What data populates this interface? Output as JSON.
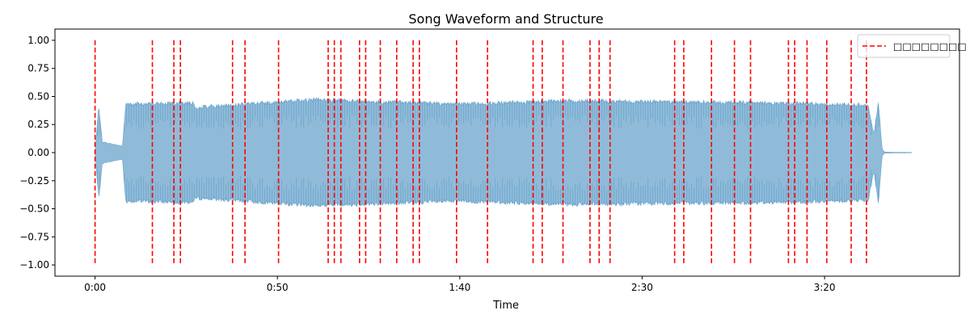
{
  "chart_data": {
    "type": "line",
    "title": "Song Waveform and Structure",
    "xlabel": "Time",
    "ylabel": "",
    "xlim": [
      -11,
      237
    ],
    "ylim": [
      -1.1,
      1.1
    ],
    "x_ticks": [
      {
        "value": 0,
        "label": "0:00"
      },
      {
        "value": 50,
        "label": "0:50"
      },
      {
        "value": 100,
        "label": "1:40"
      },
      {
        "value": 150,
        "label": "2:30"
      },
      {
        "value": 200,
        "label": "3:20"
      }
    ],
    "y_ticks": [
      1.0,
      0.75,
      0.5,
      0.25,
      0.0,
      -0.25,
      -0.5,
      -0.75,
      -1.0
    ],
    "y_tick_labels": [
      "1.00",
      "0.75",
      "0.50",
      "0.25",
      "0.00",
      "−0.25",
      "−0.50",
      "−0.75",
      "−1.00"
    ],
    "legend": {
      "entries": [
        "□□□□□□□□"
      ],
      "position": "upper right"
    },
    "waveform": {
      "color": "#1f77b4",
      "opacity": 0.5,
      "duration": 224,
      "envelope": [
        {
          "t": 0.0,
          "a": 0.02
        },
        {
          "t": 1.0,
          "a": 0.43
        },
        {
          "t": 2.0,
          "a": 0.1
        },
        {
          "t": 7.5,
          "a": 0.06
        },
        {
          "t": 8.4,
          "a": 0.45
        },
        {
          "t": 27.0,
          "a": 0.46
        },
        {
          "t": 27.5,
          "a": 0.42
        },
        {
          "t": 60.0,
          "a": 0.49
        },
        {
          "t": 100.0,
          "a": 0.45
        },
        {
          "t": 130.0,
          "a": 0.48
        },
        {
          "t": 190.0,
          "a": 0.46
        },
        {
          "t": 212.0,
          "a": 0.44
        },
        {
          "t": 213.5,
          "a": 0.17
        },
        {
          "t": 214.8,
          "a": 0.47
        },
        {
          "t": 215.8,
          "a": 0.03
        },
        {
          "t": 216.5,
          "a": 0.005
        },
        {
          "t": 224.0,
          "a": 0.002
        }
      ]
    },
    "segment_boundaries": {
      "label": "□□□□□□□□",
      "color": "#ff0000",
      "style": "dashed",
      "ymin": -1.0,
      "ymax": 1.0,
      "times": [
        0,
        15.7,
        21.6,
        23.4,
        37.7,
        41.1,
        50.3,
        63.9,
        65.6,
        67.4,
        72.5,
        74.2,
        78.2,
        82.7,
        87.2,
        88.9,
        99.1,
        107.6,
        120.1,
        122.6,
        128.3,
        135.7,
        138.2,
        141.2,
        158.9,
        161.4,
        169.0,
        175.3,
        179.7,
        190.1,
        191.8,
        195.2,
        200.6,
        207.3,
        211.5
      ]
    }
  }
}
